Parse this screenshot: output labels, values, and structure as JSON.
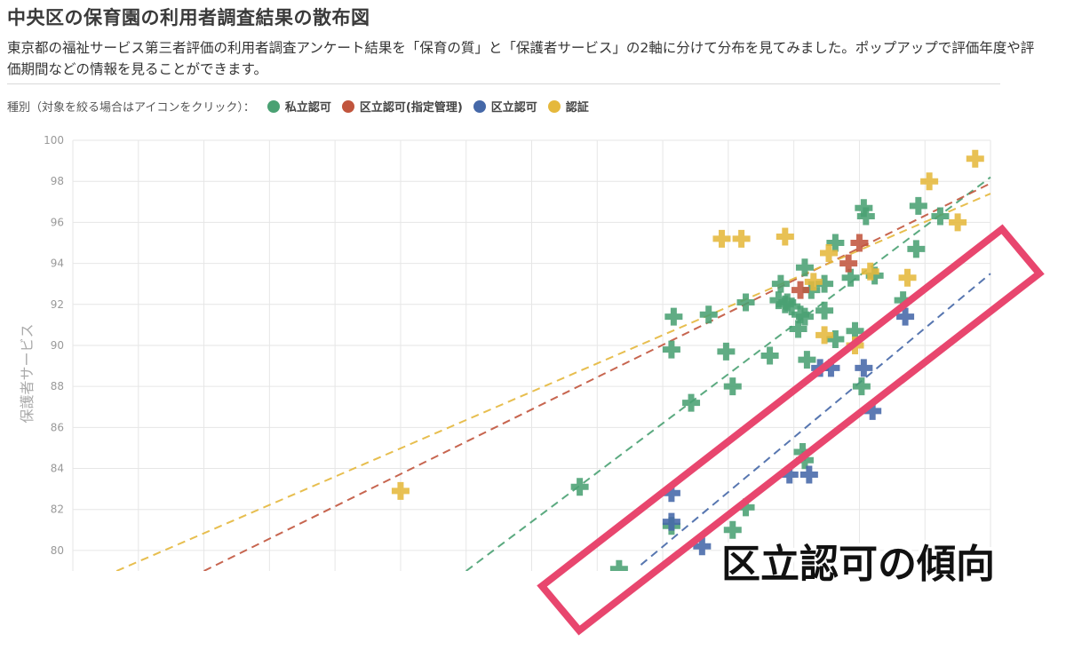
{
  "header": {
    "title": "中央区の保育園の利用者調査結果の散布図",
    "description": "東京都の福祉サービス第三者評価の利用者調査アンケート結果を「保育の質」と「保護者サービス」の2軸に分けて分布を見てみました。ポップアップで評価年度や評価期間などの情報を見ることができます。"
  },
  "legend": {
    "prompt": "種別（対象を絞る場合はアイコンをクリック）：",
    "items": [
      {
        "label": "私立認可",
        "color": "#4aa173"
      },
      {
        "label": "区立認可(指定管理)",
        "color": "#c1553d"
      },
      {
        "label": "区立認可",
        "color": "#4568a8"
      },
      {
        "label": "認証",
        "color": "#e5b83c"
      }
    ]
  },
  "callout": {
    "text": "区立認可の傾向",
    "color": "#e8466e"
  },
  "chart_data": {
    "type": "scatter",
    "title": "",
    "xlabel": "",
    "ylabel": "保護者サービス",
    "ylim": [
      79,
      100
    ],
    "y_ticks": [
      80,
      82,
      84,
      86,
      88,
      90,
      92,
      94,
      96,
      98,
      100
    ],
    "xlim": [
      60,
      102
    ],
    "grid": true,
    "series": [
      {
        "name": "私立認可",
        "color": "#4aa173",
        "marker": "plus",
        "trend": [
          [
            78,
            79
          ],
          [
            102,
            98.2
          ]
        ],
        "points": [
          [
            85.0,
            79.1
          ],
          [
            83.2,
            83.1
          ],
          [
            87.4,
            89.8
          ],
          [
            87.5,
            91.4
          ],
          [
            88.3,
            87.2
          ],
          [
            89.1,
            91.5
          ],
          [
            89.9,
            89.7
          ],
          [
            90.2,
            88.0
          ],
          [
            90.8,
            92.1
          ],
          [
            91.9,
            89.5
          ],
          [
            92.3,
            92.2
          ],
          [
            92.4,
            93.0
          ],
          [
            92.6,
            92.0
          ],
          [
            92.7,
            92.1
          ],
          [
            92.9,
            91.9
          ],
          [
            93.2,
            90.8
          ],
          [
            93.3,
            91.5
          ],
          [
            93.5,
            91.4
          ],
          [
            93.5,
            93.8
          ],
          [
            93.6,
            89.3
          ],
          [
            93.8,
            92.7
          ],
          [
            94.4,
            91.7
          ],
          [
            94.9,
            90.3
          ],
          [
            94.9,
            95.0
          ],
          [
            95.6,
            93.3
          ],
          [
            95.8,
            90.7
          ],
          [
            96.2,
            96.7
          ],
          [
            96.3,
            96.3
          ],
          [
            96.7,
            93.4
          ],
          [
            96.1,
            88.0
          ],
          [
            98.0,
            92.2
          ],
          [
            98.6,
            94.7
          ],
          [
            98.7,
            96.8
          ],
          [
            99.7,
            96.3
          ],
          [
            93.4,
            84.8
          ],
          [
            93.5,
            84.4
          ],
          [
            90.8,
            82.1
          ],
          [
            90.2,
            81.0
          ],
          [
            87.4,
            81.2
          ],
          [
            94.4,
            93.0
          ]
        ]
      },
      {
        "name": "区立認可(指定管理)",
        "color": "#c1553d",
        "marker": "plus",
        "trend": [
          [
            66,
            79
          ],
          [
            102,
            97.9
          ]
        ],
        "points": [
          [
            93.3,
            92.7
          ],
          [
            95.5,
            94.0
          ],
          [
            96.0,
            95.0
          ]
        ]
      },
      {
        "name": "区立認可",
        "color": "#4568a8",
        "marker": "plus",
        "trend": [
          [
            86,
            79.3
          ],
          [
            102,
            93.5
          ]
        ],
        "points": [
          [
            87.4,
            82.8
          ],
          [
            87.4,
            81.4
          ],
          [
            88.8,
            80.2
          ],
          [
            92.8,
            83.7
          ],
          [
            93.7,
            83.7
          ],
          [
            94.2,
            88.9
          ],
          [
            94.7,
            88.9
          ],
          [
            96.2,
            88.9
          ],
          [
            96.6,
            86.8
          ],
          [
            98.1,
            91.4
          ]
        ]
      },
      {
        "name": "認証",
        "color": "#e5b83c",
        "marker": "plus",
        "trend": [
          [
            62,
            79
          ],
          [
            102,
            97.4
          ]
        ],
        "points": [
          [
            75.0,
            82.9
          ],
          [
            89.7,
            95.2
          ],
          [
            90.6,
            95.2
          ],
          [
            92.6,
            95.3
          ],
          [
            93.9,
            93.1
          ],
          [
            94.4,
            90.5
          ],
          [
            94.6,
            94.5
          ],
          [
            95.8,
            90.0
          ],
          [
            96.5,
            93.6
          ],
          [
            98.2,
            93.3
          ],
          [
            99.2,
            98.0
          ],
          [
            100.5,
            96.0
          ],
          [
            101.3,
            99.1
          ]
        ]
      }
    ]
  }
}
